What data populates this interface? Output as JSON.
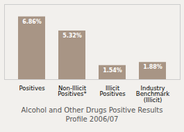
{
  "chart_data": {
    "type": "bar",
    "title": "Alcohol and Other Drugs Positive Results\nProfile 2006/07",
    "categories": [
      "Positives",
      "Non-Illicit\nPositives*",
      "Illicit\nPositives",
      "Industry\nBenchmark\n(Illicit)"
    ],
    "values": [
      6.86,
      5.32,
      1.54,
      1.88
    ],
    "value_labels": [
      "6.86%",
      "5.32%",
      "1.54%",
      "1.88%"
    ],
    "data_labels": true,
    "color": "#a89585",
    "ylim": [
      0,
      8.2
    ],
    "yticks": [],
    "tick_labels": "x",
    "grid": false
  }
}
